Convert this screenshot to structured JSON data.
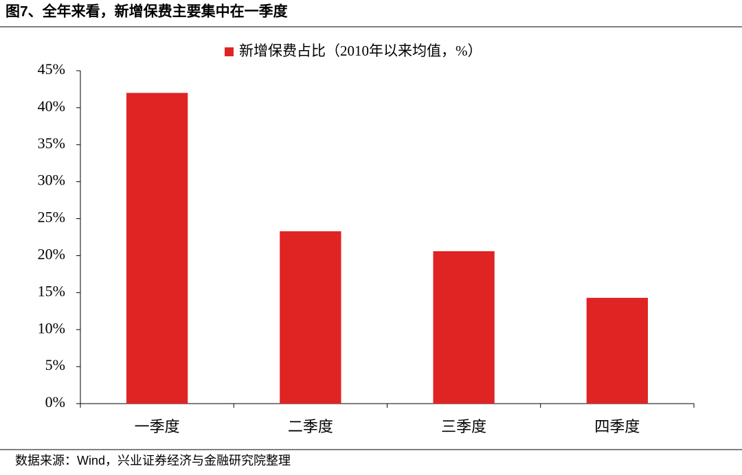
{
  "chart_data": {
    "type": "bar",
    "title": "图7、全年来看，新增保费主要集中在一季度",
    "categories": [
      "一季度",
      "二季度",
      "三季度",
      "四季度"
    ],
    "series": [
      {
        "name": "新增保费占比（2010年以来均值，%）",
        "color": "#e02424",
        "values": [
          42.0,
          23.3,
          20.6,
          14.3
        ]
      }
    ],
    "ylim": [
      0,
      45
    ],
    "yticks": [
      {
        "value": 0,
        "label": "0%"
      },
      {
        "value": 5,
        "label": "5%"
      },
      {
        "value": 10,
        "label": "10%"
      },
      {
        "value": 15,
        "label": "15%"
      },
      {
        "value": 20,
        "label": "20%"
      },
      {
        "value": 25,
        "label": "25%"
      },
      {
        "value": 30,
        "label": "30%"
      },
      {
        "value": 35,
        "label": "35%"
      },
      {
        "value": 40,
        "label": "40%"
      },
      {
        "value": 45,
        "label": "45%"
      }
    ],
    "grid": false,
    "legend": "top",
    "source": "数据来源：Wind，兴业证券经济与金融研究院整理"
  }
}
